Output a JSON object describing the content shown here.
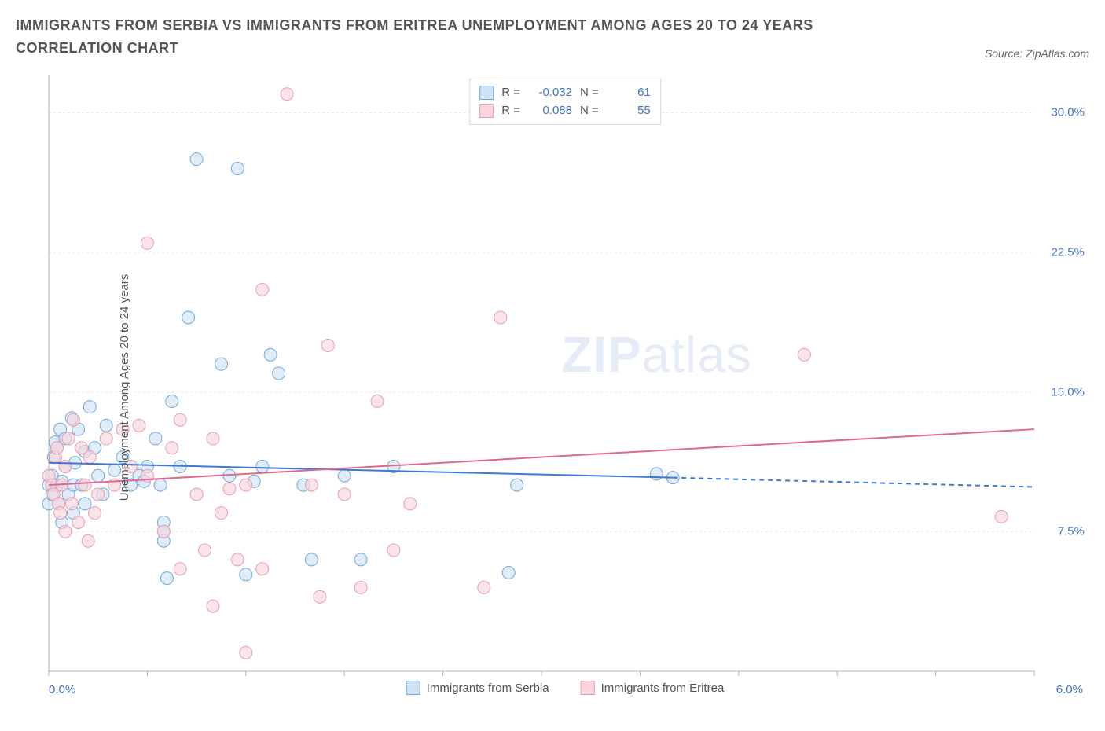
{
  "title": "IMMIGRANTS FROM SERBIA VS IMMIGRANTS FROM ERITREA UNEMPLOYMENT AMONG AGES 20 TO 24 YEARS CORRELATION CHART",
  "source_label": "Source: ZipAtlas.com",
  "ylabel": "Unemployment Among Ages 20 to 24 years",
  "watermark_bold": "ZIP",
  "watermark_light": "atlas",
  "chart": {
    "type": "scatter-with-regression",
    "background_color": "#ffffff",
    "grid_color": "#e8e8e8",
    "border_color": "#b0b0b0",
    "font_color_axis": "#4472c4",
    "font_color_label": "#555555",
    "xlim": [
      0.0,
      6.0
    ],
    "ylim": [
      0.0,
      32.0
    ],
    "xtick_label_left": "0.0%",
    "xtick_label_right": "6.0%",
    "xticks": [
      0.0,
      0.6,
      1.2,
      1.8,
      2.4,
      3.0,
      3.6,
      4.2,
      4.8,
      5.4,
      6.0
    ],
    "yticks": [
      {
        "v": 7.5,
        "label": "7.5%"
      },
      {
        "v": 15.0,
        "label": "15.0%"
      },
      {
        "v": 22.5,
        "label": "22.5%"
      },
      {
        "v": 30.0,
        "label": "30.0%"
      }
    ],
    "series": [
      {
        "name": "Immigrants from Serbia",
        "color_fill": "#cfe2f3",
        "color_stroke": "#6fa8dc",
        "swatch_fill": "#cfe2f3",
        "swatch_border": "#6fa8dc",
        "line_color": "#3b78d8",
        "r_value": "-0.032",
        "n_value": "61",
        "regression": {
          "x0": 0.0,
          "y0": 11.2,
          "x1_solid": 3.8,
          "y1_solid": 10.4,
          "x1_dash": 6.0,
          "y1_dash": 9.9
        },
        "marker_radius": 8,
        "points": [
          [
            0.0,
            10.0
          ],
          [
            0.0,
            9.0
          ],
          [
            0.02,
            10.5
          ],
          [
            0.02,
            9.5
          ],
          [
            0.03,
            11.5
          ],
          [
            0.04,
            12.3
          ],
          [
            0.05,
            12.0
          ],
          [
            0.05,
            10.0
          ],
          [
            0.06,
            9.0
          ],
          [
            0.07,
            13.0
          ],
          [
            0.08,
            10.2
          ],
          [
            0.08,
            8.0
          ],
          [
            0.1,
            12.5
          ],
          [
            0.1,
            11.0
          ],
          [
            0.12,
            9.5
          ],
          [
            0.14,
            13.6
          ],
          [
            0.15,
            10.0
          ],
          [
            0.15,
            8.5
          ],
          [
            0.16,
            11.2
          ],
          [
            0.18,
            13.0
          ],
          [
            0.2,
            10.0
          ],
          [
            0.22,
            11.8
          ],
          [
            0.22,
            9.0
          ],
          [
            0.25,
            14.2
          ],
          [
            0.28,
            12.0
          ],
          [
            0.3,
            10.5
          ],
          [
            0.33,
            9.5
          ],
          [
            0.35,
            13.2
          ],
          [
            0.4,
            10.8
          ],
          [
            0.45,
            11.5
          ],
          [
            0.5,
            10.0
          ],
          [
            0.55,
            10.5
          ],
          [
            0.58,
            10.2
          ],
          [
            0.6,
            11.0
          ],
          [
            0.65,
            12.5
          ],
          [
            0.68,
            10.0
          ],
          [
            0.7,
            7.0
          ],
          [
            0.7,
            8.0
          ],
          [
            0.7,
            7.5
          ],
          [
            0.72,
            5.0
          ],
          [
            0.75,
            14.5
          ],
          [
            0.8,
            11.0
          ],
          [
            0.85,
            19.0
          ],
          [
            0.9,
            27.5
          ],
          [
            1.05,
            16.5
          ],
          [
            1.1,
            10.5
          ],
          [
            1.15,
            27.0
          ],
          [
            1.2,
            5.2
          ],
          [
            1.25,
            10.2
          ],
          [
            1.3,
            11.0
          ],
          [
            1.35,
            17.0
          ],
          [
            1.4,
            16.0
          ],
          [
            1.55,
            10.0
          ],
          [
            1.6,
            6.0
          ],
          [
            1.8,
            10.5
          ],
          [
            1.9,
            6.0
          ],
          [
            2.1,
            11.0
          ],
          [
            2.8,
            5.3
          ],
          [
            2.85,
            10.0
          ],
          [
            3.7,
            10.6
          ],
          [
            3.8,
            10.4
          ]
        ]
      },
      {
        "name": "Immigrants from Eritrea",
        "color_fill": "#f8d5dd",
        "color_stroke": "#ea9bb0",
        "swatch_fill": "#f8d5dd",
        "swatch_border": "#ea9bb0",
        "line_color": "#e06790",
        "r_value": "0.088",
        "n_value": "55",
        "regression": {
          "x0": 0.0,
          "y0": 10.0,
          "x1_solid": 6.0,
          "y1_solid": 13.0
        },
        "marker_radius": 8,
        "points": [
          [
            0.0,
            10.5
          ],
          [
            0.02,
            10.0
          ],
          [
            0.03,
            9.5
          ],
          [
            0.04,
            11.5
          ],
          [
            0.05,
            12.0
          ],
          [
            0.06,
            9.0
          ],
          [
            0.07,
            8.5
          ],
          [
            0.08,
            10.0
          ],
          [
            0.1,
            7.5
          ],
          [
            0.1,
            11.0
          ],
          [
            0.12,
            12.5
          ],
          [
            0.14,
            9.0
          ],
          [
            0.15,
            13.5
          ],
          [
            0.18,
            8.0
          ],
          [
            0.2,
            12.0
          ],
          [
            0.22,
            10.0
          ],
          [
            0.24,
            7.0
          ],
          [
            0.25,
            11.5
          ],
          [
            0.28,
            8.5
          ],
          [
            0.3,
            9.5
          ],
          [
            0.35,
            12.5
          ],
          [
            0.4,
            10.0
          ],
          [
            0.45,
            13.0
          ],
          [
            0.5,
            11.0
          ],
          [
            0.55,
            13.2
          ],
          [
            0.6,
            10.5
          ],
          [
            0.6,
            23.0
          ],
          [
            0.7,
            7.5
          ],
          [
            0.75,
            12.0
          ],
          [
            0.8,
            5.5
          ],
          [
            0.8,
            13.5
          ],
          [
            0.9,
            9.5
          ],
          [
            0.95,
            6.5
          ],
          [
            1.0,
            12.5
          ],
          [
            1.0,
            3.5
          ],
          [
            1.05,
            8.5
          ],
          [
            1.1,
            9.8
          ],
          [
            1.15,
            6.0
          ],
          [
            1.2,
            10.0
          ],
          [
            1.2,
            1.0
          ],
          [
            1.3,
            20.5
          ],
          [
            1.3,
            5.5
          ],
          [
            1.45,
            31.0
          ],
          [
            1.6,
            10.0
          ],
          [
            1.65,
            4.0
          ],
          [
            1.7,
            17.5
          ],
          [
            1.8,
            9.5
          ],
          [
            1.9,
            4.5
          ],
          [
            2.0,
            14.5
          ],
          [
            2.1,
            6.5
          ],
          [
            2.2,
            9.0
          ],
          [
            2.65,
            4.5
          ],
          [
            2.75,
            19.0
          ],
          [
            4.6,
            17.0
          ],
          [
            5.8,
            8.3
          ]
        ]
      }
    ],
    "legend_top_labels": {
      "r": "R =",
      "n": "N ="
    },
    "fontsize_title": 18,
    "fontsize_axis": 15,
    "fontsize_legend": 15,
    "marker_opacity": 0.65,
    "line_width_regression": 2,
    "line_width_marker": 1
  }
}
